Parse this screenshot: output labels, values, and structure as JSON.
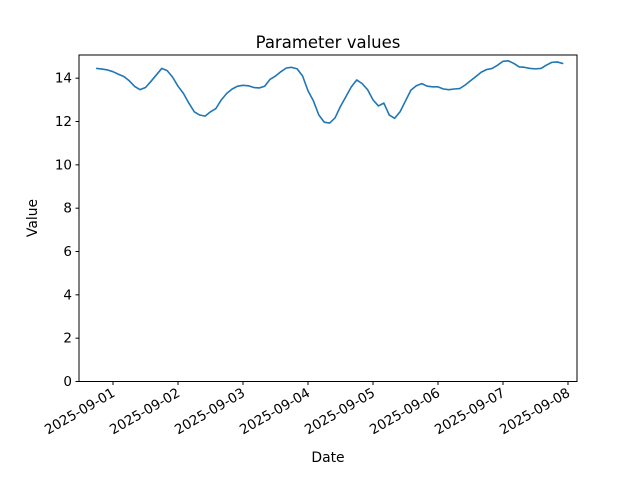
{
  "chart_data": {
    "type": "line",
    "title": "Parameter values",
    "xlabel": "Date",
    "ylabel": "Value",
    "x_tick_labels": [
      "2025-09-01",
      "2025-09-02",
      "2025-09-03",
      "2025-09-04",
      "2025-09-05",
      "2025-09-06",
      "2025-09-07",
      "2025-09-08"
    ],
    "y_tick_labels": [
      "0",
      "2",
      "4",
      "6",
      "8",
      "10",
      "12",
      "14"
    ],
    "y_ticks": [
      0,
      2,
      4,
      6,
      8,
      10,
      12,
      14
    ],
    "ylim": [
      0,
      15.07
    ],
    "xlim_days_rel_first_tick": [
      -0.52,
      7.14
    ],
    "grid": false,
    "legend": "none",
    "background_color": "#ffffff",
    "axis_color": "#000000",
    "series": [
      {
        "name": "parameter-values",
        "color": "#1f77b4",
        "line_width": 1.6,
        "x_unit": "hours since 2025-09-01 00:00",
        "t0_hours": -6,
        "step_hours": 2,
        "values": [
          14.45,
          14.42,
          14.38,
          14.3,
          14.18,
          14.08,
          13.88,
          13.62,
          13.47,
          13.57,
          13.85,
          14.15,
          14.45,
          14.35,
          14.05,
          13.63,
          13.3,
          12.85,
          12.45,
          12.3,
          12.25,
          12.45,
          12.6,
          13.0,
          13.3,
          13.5,
          13.63,
          13.67,
          13.65,
          13.57,
          13.55,
          13.63,
          13.95,
          14.1,
          14.3,
          14.47,
          14.5,
          14.43,
          14.1,
          13.42,
          12.95,
          12.3,
          11.97,
          11.93,
          12.17,
          12.7,
          13.15,
          13.6,
          13.92,
          13.75,
          13.47,
          13.0,
          12.72,
          12.85,
          12.3,
          12.15,
          12.45,
          12.95,
          13.45,
          13.65,
          13.75,
          13.63,
          13.6,
          13.6,
          13.5,
          13.47,
          13.5,
          13.52,
          13.68,
          13.88,
          14.08,
          14.28,
          14.4,
          14.45,
          14.6,
          14.78,
          14.8,
          14.68,
          14.52,
          14.5,
          14.45,
          14.43,
          14.45,
          14.6,
          14.73,
          14.75,
          14.68
        ]
      }
    ]
  }
}
